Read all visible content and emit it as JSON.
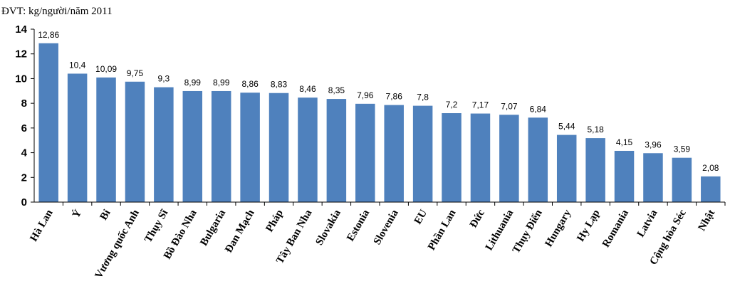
{
  "chart_data": {
    "type": "bar",
    "unit_label": "ĐVT: kg/người/năm 2011",
    "categories": [
      "Hà Lan",
      "Ý",
      "Bỉ",
      "Vương quốc Anh",
      "Thụy Sĩ",
      "Bồ Đào Nha",
      "Bulgaria",
      "Đan Mạch",
      "Pháp",
      "Tây Ban Nha",
      "Slovakia",
      "Estonia",
      "Slovenia",
      "EU",
      "Phần Lan",
      "Đức",
      "Lithuania",
      "Thụy Điển",
      "Hungary",
      "Hy Lạp",
      "Romania",
      "Latvia",
      "Cộng hòa Séc",
      "Nhật"
    ],
    "values": [
      12.86,
      10.4,
      10.09,
      9.75,
      9.3,
      8.99,
      8.99,
      8.86,
      8.83,
      8.46,
      8.35,
      7.96,
      7.86,
      7.8,
      7.2,
      7.17,
      7.07,
      6.84,
      5.44,
      5.18,
      4.15,
      3.96,
      3.59,
      2.08
    ],
    "value_labels": [
      "12,86",
      "10,4",
      "10,09",
      "9,75",
      "9,3",
      "8,99",
      "8,99",
      "8,86",
      "8,83",
      "8,46",
      "8,35",
      "7,96",
      "7,86",
      "7,8",
      "7,2",
      "7,17",
      "7,07",
      "6,84",
      "5,44",
      "5,18",
      "4,15",
      "3,96",
      "3,59",
      "2,08"
    ],
    "yticks": [
      0,
      2,
      4,
      6,
      8,
      10,
      12,
      14
    ],
    "ylim": [
      0,
      14
    ],
    "bar_color": "#4f81bd",
    "grid": false,
    "legend": "none"
  }
}
